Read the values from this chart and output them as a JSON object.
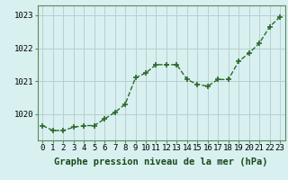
{
  "hours": [
    0,
    1,
    2,
    3,
    4,
    5,
    6,
    7,
    8,
    9,
    10,
    11,
    12,
    13,
    14,
    15,
    16,
    17,
    18,
    19,
    20,
    21,
    22,
    23
  ],
  "pressure": [
    1019.65,
    1019.5,
    1019.5,
    1019.6,
    1019.65,
    1019.65,
    1019.85,
    1020.05,
    1020.3,
    1021.1,
    1021.25,
    1021.5,
    1021.5,
    1021.5,
    1021.05,
    1020.9,
    1020.85,
    1021.05,
    1021.05,
    1021.6,
    1021.85,
    1022.15,
    1022.65,
    1022.95
  ],
  "line_color": "#2d6a2d",
  "marker": "+",
  "marker_size": 4,
  "line_width": 1.0,
  "background_color": "#d8f0f0",
  "grid_color": "#b8d0d0",
  "xlabel": "Graphe pression niveau de la mer (hPa)",
  "xlabel_fontsize": 7.5,
  "tick_fontsize": 6.5,
  "ylim": [
    1019.2,
    1023.3
  ],
  "yticks": [
    1020,
    1021,
    1022,
    1023
  ],
  "xticks": [
    0,
    1,
    2,
    3,
    4,
    5,
    6,
    7,
    8,
    9,
    10,
    11,
    12,
    13,
    14,
    15,
    16,
    17,
    18,
    19,
    20,
    21,
    22,
    23
  ]
}
